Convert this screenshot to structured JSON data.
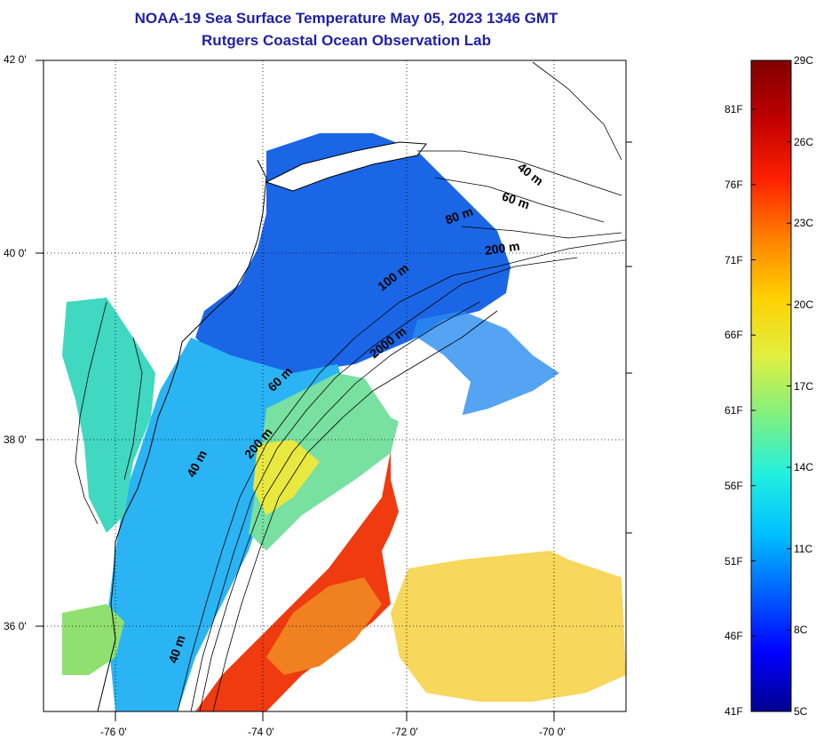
{
  "title": {
    "line1": "NOAA-19 Sea Surface Temperature May 05, 2023 1346 GMT",
    "line2": "Rutgers Coastal Ocean Observation Lab"
  },
  "axes": {
    "lat_labels": [
      "42 0'",
      "40 0'",
      "38 0'",
      "36 0'"
    ],
    "lon_labels": [
      "-76 0'",
      "-74 0'",
      "-72 0'",
      "-70 0'"
    ]
  },
  "contour_labels": [
    "40 m",
    "60 m",
    "80 m",
    "200 m",
    "100 m",
    "2000 m",
    "60 m",
    "200 m",
    "40 m",
    "40 m"
  ],
  "colorbar": {
    "celsius": [
      "29C",
      "26C",
      "23C",
      "20C",
      "17C",
      "14C",
      "11C",
      "8C",
      "5C"
    ],
    "fahrenheit": [
      "81F",
      "76F",
      "71F",
      "66F",
      "61F",
      "56F",
      "51F",
      "46F",
      "41F"
    ],
    "colors": [
      "#00008f",
      "#0000ff",
      "#0060ff",
      "#00c0ff",
      "#20f0e0",
      "#80f080",
      "#e0f040",
      "#ffd000",
      "#ff8000",
      "#ff2000",
      "#c00000",
      "#800000"
    ]
  },
  "colors": {
    "title": "#1f1fa8",
    "land": "#ffffff",
    "cold_water": "#1e6fe8",
    "mid_water": "#28c8f0",
    "warm_water": "#f03a10",
    "offshore": "#f6d040"
  }
}
